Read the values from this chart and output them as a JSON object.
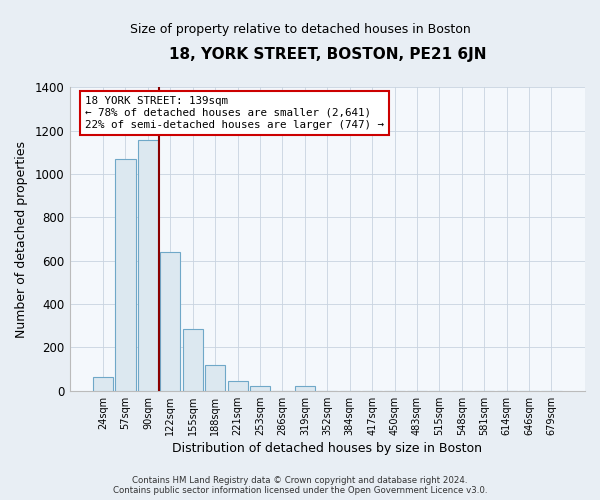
{
  "title": "18, YORK STREET, BOSTON, PE21 6JN",
  "subtitle": "Size of property relative to detached houses in Boston",
  "xlabel": "Distribution of detached houses by size in Boston",
  "ylabel": "Number of detached properties",
  "bar_labels": [
    "24sqm",
    "57sqm",
    "90sqm",
    "122sqm",
    "155sqm",
    "188sqm",
    "221sqm",
    "253sqm",
    "286sqm",
    "319sqm",
    "352sqm",
    "384sqm",
    "417sqm",
    "450sqm",
    "483sqm",
    "515sqm",
    "548sqm",
    "581sqm",
    "614sqm",
    "646sqm",
    "679sqm"
  ],
  "bar_values": [
    65,
    1070,
    1155,
    638,
    285,
    120,
    47,
    20,
    0,
    20,
    0,
    0,
    0,
    0,
    0,
    0,
    0,
    0,
    0,
    0,
    0
  ],
  "bar_color_fill": "#dce8f0",
  "bar_color_edge": "#6fa8c8",
  "vline_color": "#8b0000",
  "vline_x_index": 3,
  "ylim": [
    0,
    1400
  ],
  "yticks": [
    0,
    200,
    400,
    600,
    800,
    1000,
    1200,
    1400
  ],
  "annotation_title": "18 YORK STREET: 139sqm",
  "annotation_line1": "← 78% of detached houses are smaller (2,641)",
  "annotation_line2": "22% of semi-detached houses are larger (747) →",
  "annotation_box_facecolor": "#ffffff",
  "annotation_box_edgecolor": "#cc0000",
  "footer_line1": "Contains HM Land Registry data © Crown copyright and database right 2024.",
  "footer_line2": "Contains public sector information licensed under the Open Government Licence v3.0.",
  "fig_facecolor": "#e8eef4",
  "plot_facecolor": "#f4f8fc",
  "grid_color": "#c8d4e0"
}
